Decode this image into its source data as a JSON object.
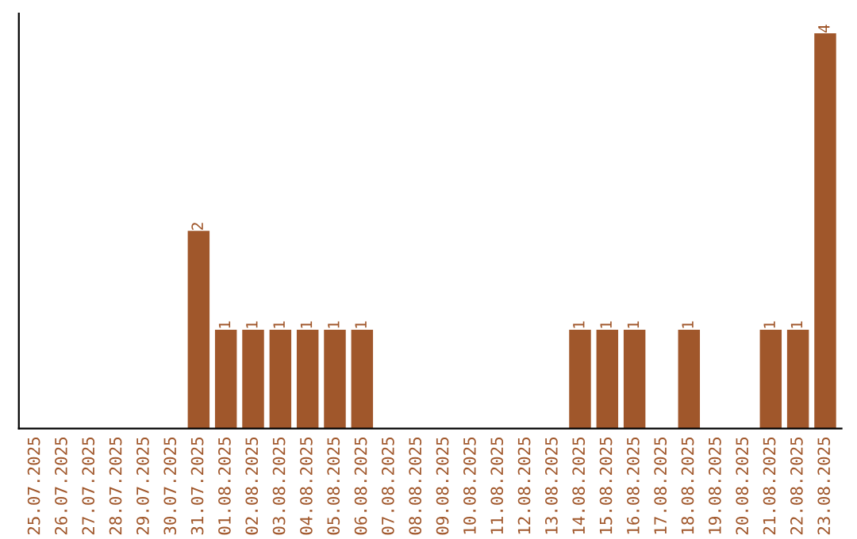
{
  "chart_data": {
    "type": "bar",
    "categories": [
      "25.07.2025",
      "26.07.2025",
      "27.07.2025",
      "28.07.2025",
      "29.07.2025",
      "30.07.2025",
      "31.07.2025",
      "01.08.2025",
      "02.08.2025",
      "03.08.2025",
      "04.08.2025",
      "05.08.2025",
      "06.08.2025",
      "07.08.2025",
      "08.08.2025",
      "09.08.2025",
      "10.08.2025",
      "11.08.2025",
      "12.08.2025",
      "13.08.2025",
      "14.08.2025",
      "15.08.2025",
      "16.08.2025",
      "17.08.2025",
      "18.08.2025",
      "19.08.2025",
      "20.08.2025",
      "21.08.2025",
      "22.08.2025",
      "23.08.2025"
    ],
    "values": [
      0,
      0,
      0,
      0,
      0,
      0,
      2,
      1,
      1,
      1,
      1,
      1,
      1,
      0,
      0,
      0,
      0,
      0,
      0,
      0,
      1,
      1,
      1,
      0,
      1,
      0,
      0,
      1,
      1,
      4
    ],
    "value_labels": [
      null,
      null,
      null,
      null,
      null,
      null,
      "2",
      "1",
      "1",
      "1",
      "1",
      "1",
      "1",
      null,
      null,
      null,
      null,
      null,
      null,
      null,
      "1",
      "1",
      "1",
      null,
      "1",
      null,
      null,
      "1",
      "1",
      "4"
    ],
    "color": "#a0572b",
    "tick_labels": "x",
    "grid": false,
    "legend": false
  }
}
